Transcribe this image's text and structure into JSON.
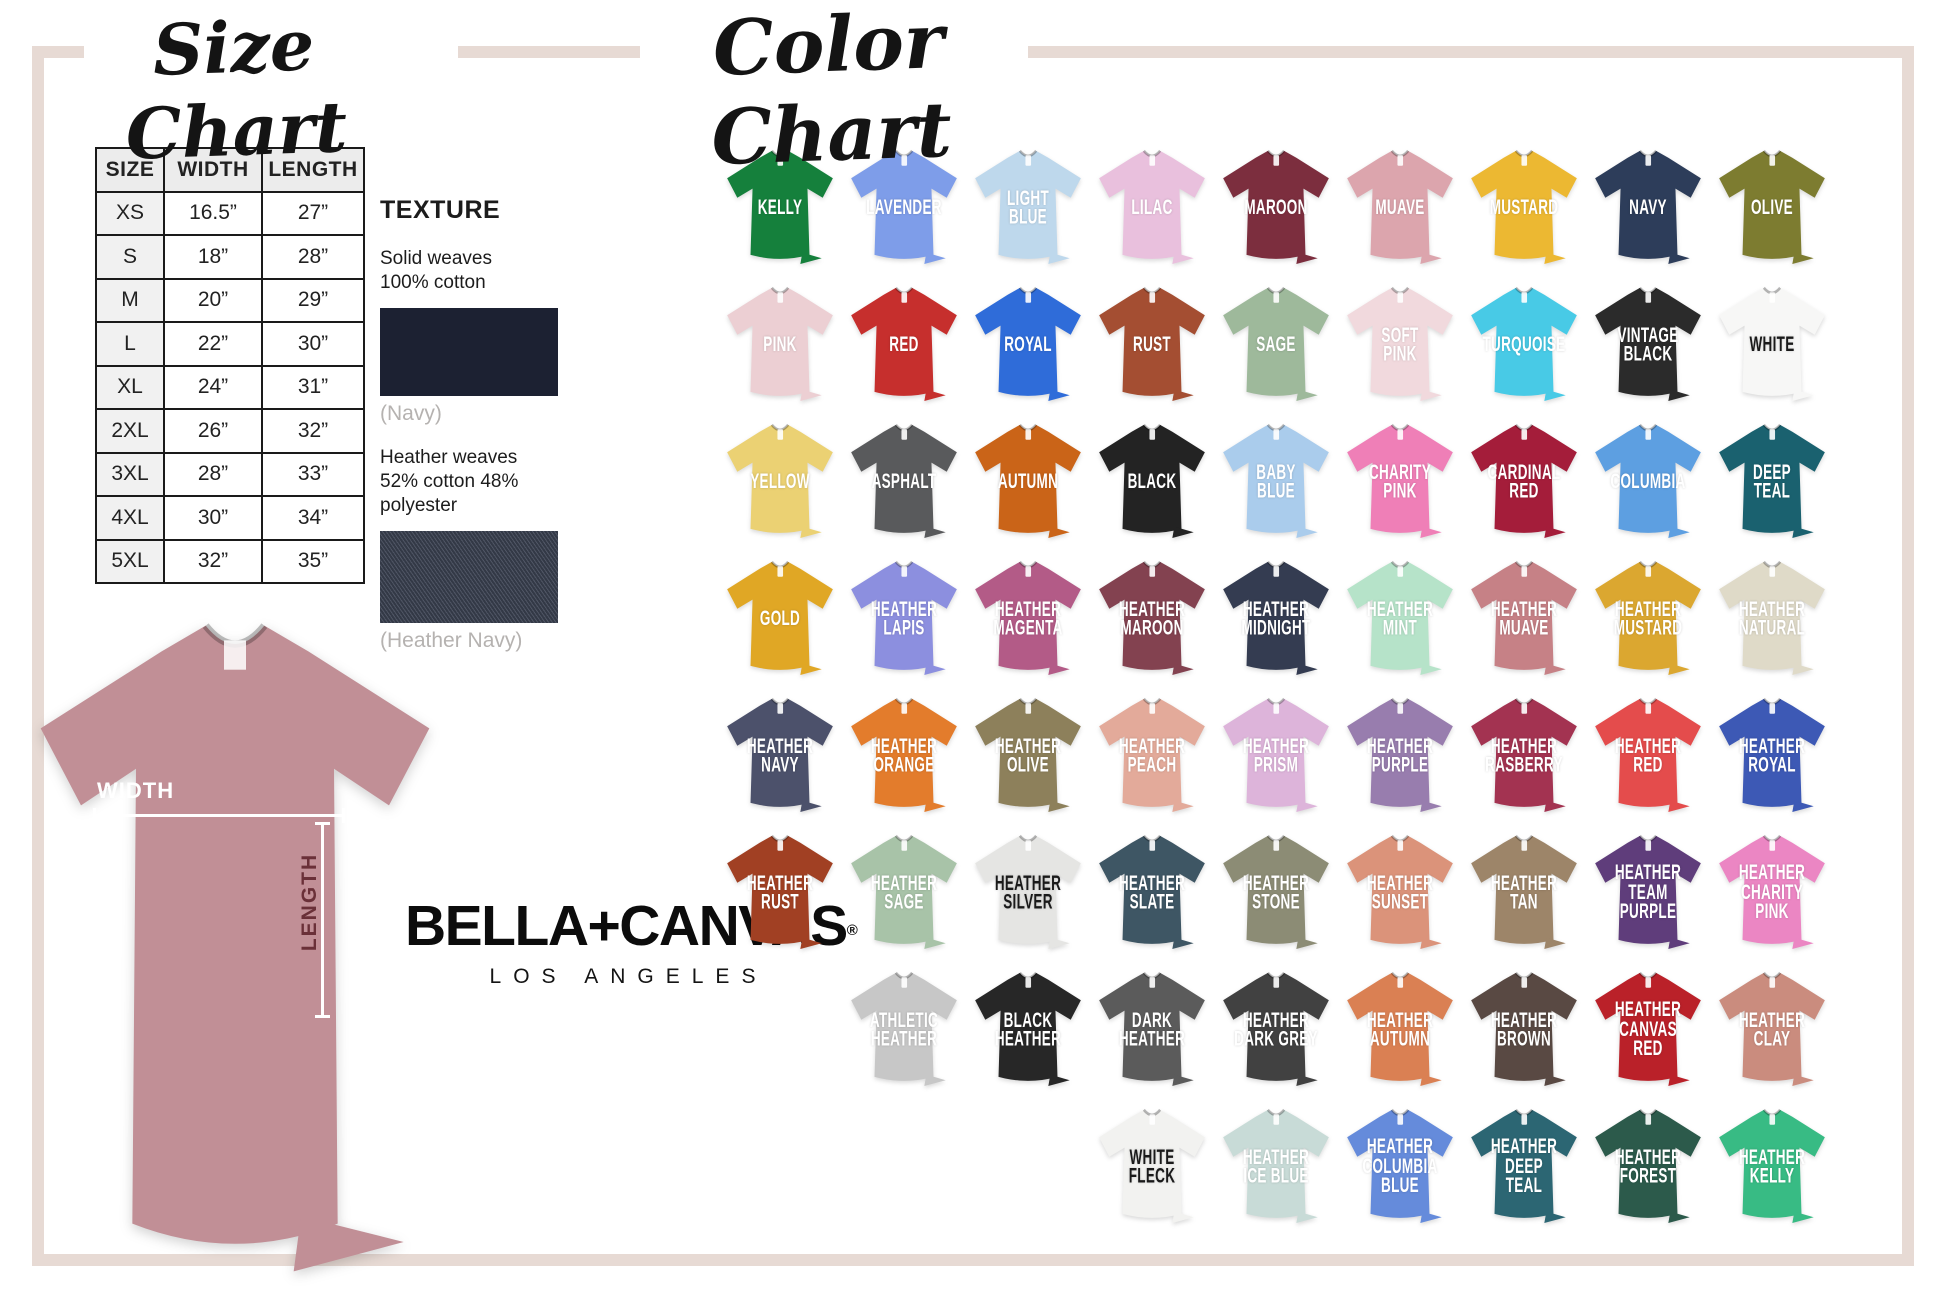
{
  "frame_color": "#e7dad4",
  "size_chart": {
    "title": "Size Chart",
    "headers": [
      "SIZE",
      "WIDTH",
      "LENGTH"
    ],
    "rows": [
      [
        "XS",
        "16.5”",
        "27”"
      ],
      [
        "S",
        "18”",
        "28”"
      ],
      [
        "M",
        "20”",
        "29”"
      ],
      [
        "L",
        "22”",
        "30”"
      ],
      [
        "XL",
        "24”",
        "31”"
      ],
      [
        "2XL",
        "26”",
        "32”"
      ],
      [
        "3XL",
        "28”",
        "33”"
      ],
      [
        "4XL",
        "30”",
        "34”"
      ],
      [
        "5XL",
        "32”",
        "35”"
      ]
    ]
  },
  "texture": {
    "title": "TEXTURE",
    "solid_line1": "Solid weaves",
    "solid_line2": "100% cotton",
    "solid_caption": "(Navy)",
    "solid_color": "#1c2132",
    "heather_line1": "Heather weaves",
    "heather_line2": "52% cotton 48% polyester",
    "heather_caption": "(Heather Navy)",
    "heather_color": "#3b4252"
  },
  "measurement": {
    "width_label": "WIDTH",
    "length_label": "LENGTH",
    "shirt_color": "#c18f96"
  },
  "brand": {
    "name": "BELLA+CANVAS",
    "registered_mark": "®",
    "subtitle": "LOS ANGELES"
  },
  "color_chart": {
    "title": "Color Chart",
    "rows": [
      {
        "offset": 0,
        "shirts": [
          {
            "name": "Kelly",
            "lines": [
              "KELLY"
            ],
            "color": "#15803c",
            "text": "#ffffff"
          },
          {
            "name": "Lavender",
            "lines": [
              "LAVENDER"
            ],
            "color": "#7e9de9",
            "text": "#ffffff"
          },
          {
            "name": "Light Blue",
            "lines": [
              "LIGHT",
              "BLUE"
            ],
            "color": "#bed8ec",
            "text": "#ffffff"
          },
          {
            "name": "Lilac",
            "lines": [
              "LILAC"
            ],
            "color": "#e9c0dd",
            "text": "#ffffff"
          },
          {
            "name": "Maroon",
            "lines": [
              "MAROON"
            ],
            "color": "#7c2e3e",
            "text": "#ffffff"
          },
          {
            "name": "Muave",
            "lines": [
              "MUAVE"
            ],
            "color": "#dca5ad",
            "text": "#ffffff"
          },
          {
            "name": "Mustard",
            "lines": [
              "MUSTARD"
            ],
            "color": "#ecb832",
            "text": "#ffffff"
          },
          {
            "name": "Navy",
            "lines": [
              "NAVY"
            ],
            "color": "#2d3d5a",
            "text": "#ffffff"
          },
          {
            "name": "Olive",
            "lines": [
              "OLIVE"
            ],
            "color": "#7d7c30",
            "text": "#ffffff"
          }
        ]
      },
      {
        "offset": 0,
        "shirts": [
          {
            "name": "Pink",
            "lines": [
              "PINK"
            ],
            "color": "#eccfd3",
            "text": "#ffffff"
          },
          {
            "name": "Red",
            "lines": [
              "RED"
            ],
            "color": "#c62f2d",
            "text": "#ffffff"
          },
          {
            "name": "Royal",
            "lines": [
              "ROYAL"
            ],
            "color": "#2f6cd9",
            "text": "#ffffff"
          },
          {
            "name": "Rust",
            "lines": [
              "RUST"
            ],
            "color": "#a44e32",
            "text": "#ffffff"
          },
          {
            "name": "Sage",
            "lines": [
              "SAGE"
            ],
            "color": "#9eb99b",
            "text": "#ffffff"
          },
          {
            "name": "Soft Pink",
            "lines": [
              "SOFT",
              "PINK"
            ],
            "color": "#f1d9dd",
            "text": "#ffffff"
          },
          {
            "name": "Turquoise",
            "lines": [
              "TURQUOISE"
            ],
            "color": "#48cae6",
            "text": "#ffffff"
          },
          {
            "name": "Vintage Black",
            "lines": [
              "VINTAGE",
              "BLACK"
            ],
            "color": "#2b2b2b",
            "text": "#ffffff"
          },
          {
            "name": "White",
            "lines": [
              "WHITE"
            ],
            "color": "#f7f7f6",
            "text": "#1a1a1a"
          }
        ]
      },
      {
        "offset": 0,
        "shirts": [
          {
            "name": "Yellow",
            "lines": [
              "YELLOW"
            ],
            "color": "#ebd173",
            "text": "#ffffff"
          },
          {
            "name": "Asphalt",
            "lines": [
              "ASPHALT"
            ],
            "color": "#595a5c",
            "text": "#ffffff"
          },
          {
            "name": "Autumn",
            "lines": [
              "AUTUMN"
            ],
            "color": "#ca6418",
            "text": "#ffffff"
          },
          {
            "name": "Black",
            "lines": [
              "BLACK"
            ],
            "color": "#232323",
            "text": "#ffffff"
          },
          {
            "name": "Baby Blue",
            "lines": [
              "BABY",
              "BLUE"
            ],
            "color": "#aaccec",
            "text": "#ffffff"
          },
          {
            "name": "Charity Pink",
            "lines": [
              "CHARITY",
              "PINK"
            ],
            "color": "#ef7fb7",
            "text": "#ffffff"
          },
          {
            "name": "Cardinal Red",
            "lines": [
              "CARDINAL",
              "RED"
            ],
            "color": "#a41d3a",
            "text": "#ffffff"
          },
          {
            "name": "Columbia",
            "lines": [
              "COLUMBIA"
            ],
            "color": "#5d9fe1",
            "text": "#ffffff"
          },
          {
            "name": "Deep Teal",
            "lines": [
              "DEEP",
              "TEAL"
            ],
            "color": "#1a616f",
            "text": "#ffffff"
          }
        ]
      },
      {
        "offset": 0,
        "shirts": [
          {
            "name": "Gold",
            "lines": [
              "GOLD"
            ],
            "color": "#e0a725",
            "text": "#ffffff"
          },
          {
            "name": "Heather Lapis",
            "lines": [
              "HEATHER",
              "LAPIS"
            ],
            "color": "#8c8fdf",
            "text": "#ffffff"
          },
          {
            "name": "Heather Magenta",
            "lines": [
              "HEATHER",
              "MAGENTA"
            ],
            "color": "#b35b87",
            "text": "#ffffff"
          },
          {
            "name": "Heather Maroon",
            "lines": [
              "HEATHER",
              "MAROON"
            ],
            "color": "#834250",
            "text": "#ffffff"
          },
          {
            "name": "Heather Midnight",
            "lines": [
              "HEATHER",
              "MIDNIGHT"
            ],
            "color": "#343c51",
            "text": "#ffffff"
          },
          {
            "name": "Heather Mint",
            "lines": [
              "HEATHER",
              "MINT"
            ],
            "color": "#b6e3c9",
            "text": "#ffffff"
          },
          {
            "name": "Heather Muave",
            "lines": [
              "HEATHER",
              "MUAVE"
            ],
            "color": "#c68186",
            "text": "#ffffff"
          },
          {
            "name": "Heather Mustard",
            "lines": [
              "HEATHER",
              "MUSTARD"
            ],
            "color": "#dba730",
            "text": "#ffffff"
          },
          {
            "name": "Heather Natural",
            "lines": [
              "HEATHER",
              "NATURAL"
            ],
            "color": "#dfdac8",
            "text": "#ffffff"
          }
        ]
      },
      {
        "offset": 0,
        "shirts": [
          {
            "name": "Heather Navy",
            "lines": [
              "HEATHER",
              "NAVY"
            ],
            "color": "#4c516b",
            "text": "#ffffff"
          },
          {
            "name": "Heather Orange",
            "lines": [
              "HEATHER",
              "ORANGE"
            ],
            "color": "#e37c2c",
            "text": "#ffffff"
          },
          {
            "name": "Heather Olive",
            "lines": [
              "HEATHER",
              "OLIVE"
            ],
            "color": "#8d805b",
            "text": "#ffffff"
          },
          {
            "name": "Heather Peach",
            "lines": [
              "HEATHER",
              "PEACH"
            ],
            "color": "#e3aa9a",
            "text": "#ffffff"
          },
          {
            "name": "Heather Prism",
            "lines": [
              "HEATHER",
              "PRISM"
            ],
            "color": "#ddb4da",
            "text": "#ffffff"
          },
          {
            "name": "Heather Purple",
            "lines": [
              "HEATHER",
              "PURPLE"
            ],
            "color": "#987dae",
            "text": "#ffffff"
          },
          {
            "name": "Heather Rasberry",
            "lines": [
              "HEATHER",
              "RASBERRY"
            ],
            "color": "#a33351",
            "text": "#ffffff"
          },
          {
            "name": "Heather Red",
            "lines": [
              "HEATHER",
              "RED"
            ],
            "color": "#e44c4c",
            "text": "#ffffff"
          },
          {
            "name": "Heather Royal",
            "lines": [
              "HEATHER",
              "ROYAL"
            ],
            "color": "#3d59b5",
            "text": "#ffffff"
          }
        ]
      },
      {
        "offset": 0,
        "shirts": [
          {
            "name": "Heather Rust",
            "lines": [
              "HEATHER",
              "RUST"
            ],
            "color": "#a14023",
            "text": "#ffffff"
          },
          {
            "name": "Heather Sage",
            "lines": [
              "HEATHER",
              "SAGE"
            ],
            "color": "#a8c3a8",
            "text": "#ffffff"
          },
          {
            "name": "Heather Silver",
            "lines": [
              "HEATHER",
              "SILVER"
            ],
            "color": "#e5e5e3",
            "text": "#1a1a1a"
          },
          {
            "name": "Heather Slate",
            "lines": [
              "HEATHER",
              "SLATE"
            ],
            "color": "#3e5664",
            "text": "#ffffff"
          },
          {
            "name": "Heather Stone",
            "lines": [
              "HEATHER",
              "STONE"
            ],
            "color": "#8c8c75",
            "text": "#ffffff"
          },
          {
            "name": "Heather Sunset",
            "lines": [
              "HEATHER",
              "SUNSET"
            ],
            "color": "#db937a",
            "text": "#ffffff"
          },
          {
            "name": "Heather Tan",
            "lines": [
              "HEATHER",
              "TAN"
            ],
            "color": "#9d8569",
            "text": "#ffffff"
          },
          {
            "name": "Heather Team Purple",
            "lines": [
              "HEATHER",
              "TEAM",
              "PURPLE"
            ],
            "color": "#5f3d7b",
            "text": "#ffffff"
          },
          {
            "name": "Heather Charity Pink",
            "lines": [
              "HEATHER",
              "CHARITY",
              "PINK"
            ],
            "color": "#eb86c3",
            "text": "#ffffff"
          }
        ]
      },
      {
        "offset": 1,
        "shirts": [
          {
            "name": "Athletic Heather",
            "lines": [
              "ATHLETIC",
              "HEATHER"
            ],
            "color": "#c7c7c7",
            "text": "#ffffff"
          },
          {
            "name": "Black Heather",
            "lines": [
              "BLACK",
              "HEATHER"
            ],
            "color": "#272727",
            "text": "#ffffff"
          },
          {
            "name": "Dark Heather",
            "lines": [
              "DARK",
              "HEATHER"
            ],
            "color": "#5b5b5b",
            "text": "#ffffff"
          },
          {
            "name": "Heather Dark Grey",
            "lines": [
              "HEATHER",
              "DARK GREY"
            ],
            "color": "#414141",
            "text": "#ffffff"
          },
          {
            "name": "Heather Autumn",
            "lines": [
              "HEATHER",
              "AUTUMN"
            ],
            "color": "#da8053",
            "text": "#ffffff"
          },
          {
            "name": "Heather Brown",
            "lines": [
              "HEATHER",
              "BROWN"
            ],
            "color": "#594943",
            "text": "#ffffff"
          },
          {
            "name": "Heather Canvas Red",
            "lines": [
              "HEATHER",
              "CANVAS",
              "RED"
            ],
            "color": "#ba2129",
            "text": "#ffffff"
          },
          {
            "name": "Heather Clay",
            "lines": [
              "HEATHER",
              "CLAY"
            ],
            "color": "#ca8c7e",
            "text": "#ffffff"
          }
        ]
      },
      {
        "offset": 3,
        "shirts": [
          {
            "name": "White Fleck",
            "lines": [
              "WHITE",
              "FLECK"
            ],
            "color": "#f2f2f0",
            "text": "#1a1a1a"
          },
          {
            "name": "Heather Ice Blue",
            "lines": [
              "HEATHER",
              "ICE BLUE"
            ],
            "color": "#c8dbd7",
            "text": "#ffffff"
          },
          {
            "name": "Heather Columbia Blue",
            "lines": [
              "HEATHER",
              "COLUMBIA",
              "BLUE"
            ],
            "color": "#658bdb",
            "text": "#ffffff"
          },
          {
            "name": "Heather Deep Teal",
            "lines": [
              "HEATHER",
              "DEEP",
              "TEAL"
            ],
            "color": "#2c6673",
            "text": "#ffffff"
          },
          {
            "name": "Heather Forest",
            "lines": [
              "HEATHER",
              "FOREST"
            ],
            "color": "#2c5a4b",
            "text": "#ffffff"
          },
          {
            "name": "Heather Kelly",
            "lines": [
              "HEATHER",
              "KELLY"
            ],
            "color": "#38bb84",
            "text": "#ffffff"
          }
        ]
      }
    ]
  }
}
